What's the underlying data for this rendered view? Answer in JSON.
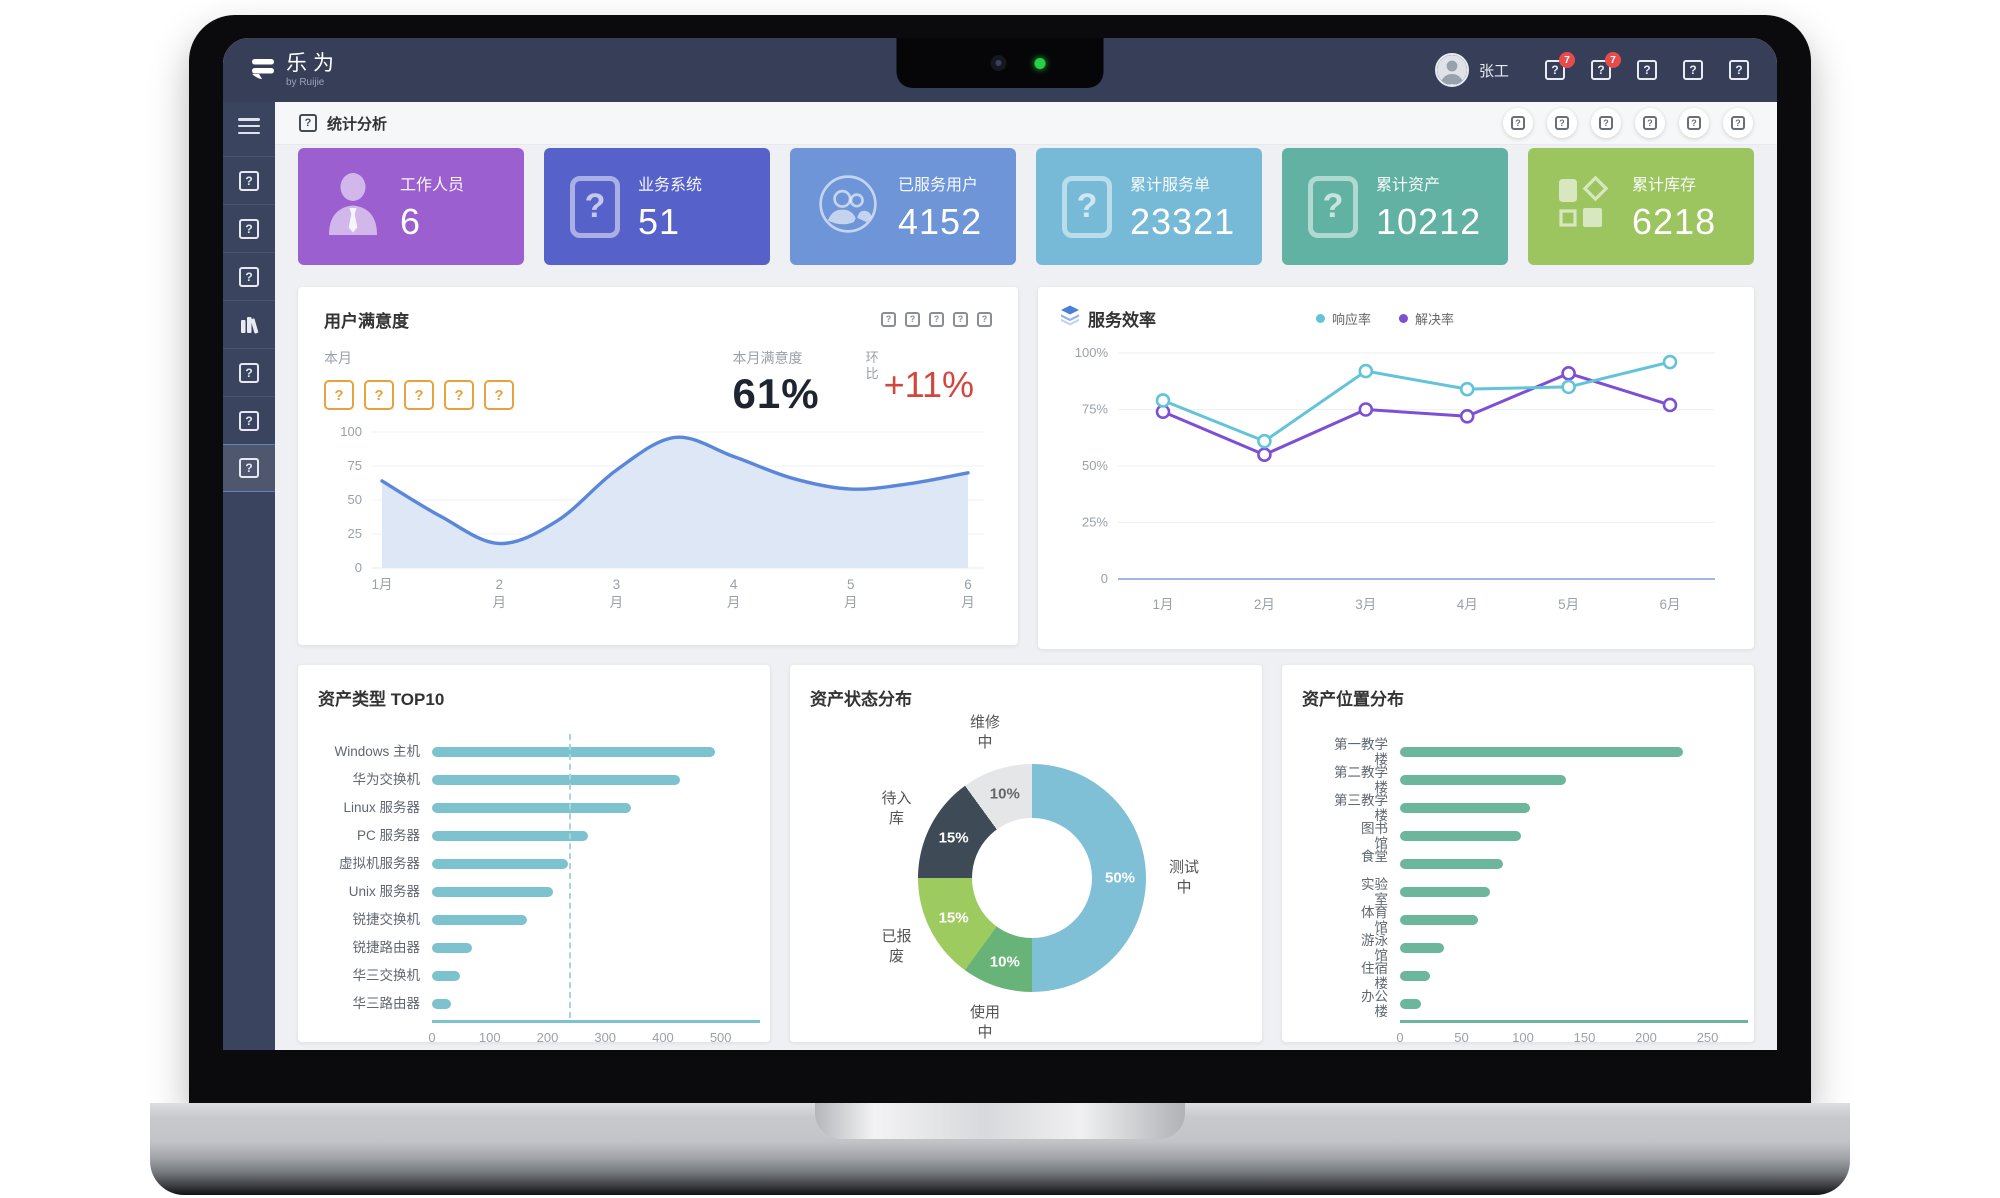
{
  "navbar": {
    "logo_text": "乐为",
    "logo_sub": "by Ruijie",
    "user_name": "张工",
    "icons": [
      {
        "name": "message-icon",
        "badge": "7"
      },
      {
        "name": "notification-icon",
        "badge": "7"
      },
      {
        "name": "help-icon",
        "badge": null
      },
      {
        "name": "fullscreen-icon",
        "badge": null
      },
      {
        "name": "logout-icon",
        "badge": null
      }
    ]
  },
  "sidebar": {
    "items": [
      {
        "name": "nav-item-1",
        "icon": "placeholder",
        "active": false
      },
      {
        "name": "nav-item-2",
        "icon": "placeholder",
        "active": false
      },
      {
        "name": "nav-item-3",
        "icon": "placeholder",
        "active": false
      },
      {
        "name": "nav-item-knowledge",
        "icon": "books",
        "active": false
      },
      {
        "name": "nav-item-5",
        "icon": "placeholder",
        "active": false
      },
      {
        "name": "nav-item-6",
        "icon": "placeholder",
        "active": false
      },
      {
        "name": "nav-item-stats",
        "icon": "placeholder",
        "active": true
      }
    ]
  },
  "page_header": {
    "title": "统计分析",
    "actions": [
      {
        "name": "header-action-1"
      },
      {
        "name": "header-action-2"
      },
      {
        "name": "header-action-3"
      },
      {
        "name": "header-action-4"
      },
      {
        "name": "header-action-5"
      },
      {
        "name": "header-action-6"
      }
    ]
  },
  "stat_cards": [
    {
      "label": "工作人员",
      "value": "6",
      "color": "#9b5fd0",
      "icon": "person-icon"
    },
    {
      "label": "业务系统",
      "value": "51",
      "color": "#5661c9",
      "icon": "placeholder-icon"
    },
    {
      "label": "已服务用户",
      "value": "4152",
      "color": "#6d95d8",
      "icon": "people-icon"
    },
    {
      "label": "累计服务单",
      "value": "23321",
      "color": "#76bad7",
      "icon": "placeholder-icon"
    },
    {
      "label": "累计资产",
      "value": "10212",
      "color": "#61b2a2",
      "icon": "placeholder-icon"
    },
    {
      "label": "累计库存",
      "value": "6218",
      "color": "#9cc45f",
      "icon": "shapes-icon"
    }
  ],
  "satisfaction": {
    "title": "用户满意度",
    "toolbar_icons": 5,
    "month_label": "本月",
    "star_count": 5,
    "score_label": "本月满意度",
    "score": "61%",
    "delta_label": "环比",
    "delta": "+11%",
    "chart_data": {
      "type": "area",
      "x": [
        "1月",
        "2月",
        "3月",
        "4月",
        "5月",
        "6月"
      ],
      "monthly_values": [
        64,
        18,
        78,
        82,
        58,
        70
      ],
      "curve_samples_x": [
        1,
        1.5,
        2,
        2.5,
        3,
        3.5,
        4,
        4.5,
        5,
        5.5,
        6
      ],
      "curve_samples_y": [
        64,
        38,
        18,
        35,
        72,
        96,
        82,
        66,
        58,
        62,
        70
      ],
      "ylim": [
        0,
        100
      ],
      "yticks": [
        0,
        25,
        50,
        75,
        100
      ],
      "line_color": "#5b87da",
      "fill_color": "#dde7f6",
      "grid": true
    }
  },
  "efficiency": {
    "title": "服务效率",
    "chart_data": {
      "type": "line",
      "x": [
        "1月",
        "2月",
        "3月",
        "4月",
        "5月",
        "6月"
      ],
      "series": [
        {
          "name": "响应率",
          "color": "#63c3d8",
          "values": [
            79,
            61,
            92,
            84,
            85,
            96
          ]
        },
        {
          "name": "解决率",
          "color": "#7c4fd4",
          "values": [
            74,
            55,
            75,
            72,
            91,
            77
          ]
        }
      ],
      "ylim": [
        0,
        100
      ],
      "ytick_labels": [
        "0",
        "25%",
        "50%",
        "75%",
        "100%"
      ],
      "legend_position": "top",
      "grid": true,
      "zero_line_color": "#7f9fdc"
    }
  },
  "asset_type": {
    "title": "资产类型 TOP10",
    "chart_data": {
      "type": "bar",
      "orientation": "horizontal",
      "categories": [
        "Windows 主机",
        "华为交换机",
        "Linux 服务器",
        "PC 服务器",
        "虚拟机服务器",
        "Unix 服务器",
        "锐捷交换机",
        "锐捷路由器",
        "华三交换机",
        "华三路由器"
      ],
      "values": [
        490,
        430,
        345,
        270,
        235,
        210,
        165,
        70,
        48,
        33
      ],
      "xticks": [
        0,
        100,
        200,
        300,
        400,
        500
      ],
      "xmax": 530,
      "avg_line": 238,
      "bar_color": "#7cc3cf"
    }
  },
  "asset_status": {
    "title": "资产状态分布",
    "chart_data": {
      "type": "pie",
      "donut": true,
      "slices": [
        {
          "label": "测试中",
          "value": 50,
          "color": "#7fc0d6",
          "text_color": "#ffffff"
        },
        {
          "label": "使用中",
          "value": 10,
          "color": "#68b377",
          "text_color": "#ffffff"
        },
        {
          "label": "已报废",
          "value": 15,
          "color": "#9ecb60",
          "text_color": "#ffffff"
        },
        {
          "label": "待入库",
          "value": 15,
          "color": "#3f4a57",
          "text_color": "#ffffff"
        },
        {
          "label": "维修中",
          "value": 10,
          "color": "#e4e6e8",
          "text_color": "#666666"
        }
      ]
    }
  },
  "asset_location": {
    "title": "资产位置分布",
    "chart_data": {
      "type": "bar",
      "orientation": "horizontal",
      "categories": [
        "第一教学楼",
        "第二教学楼",
        "第三教学楼",
        "图书馆",
        "食堂",
        "实验室",
        "体育馆",
        "游泳馆",
        "住宿楼",
        "办公楼"
      ],
      "values": [
        230,
        135,
        106,
        98,
        84,
        73,
        63,
        36,
        24,
        17
      ],
      "xticks": [
        0,
        50,
        100,
        150,
        200,
        250
      ],
      "xmax": 265,
      "bar_color": "#6cb69c"
    }
  }
}
